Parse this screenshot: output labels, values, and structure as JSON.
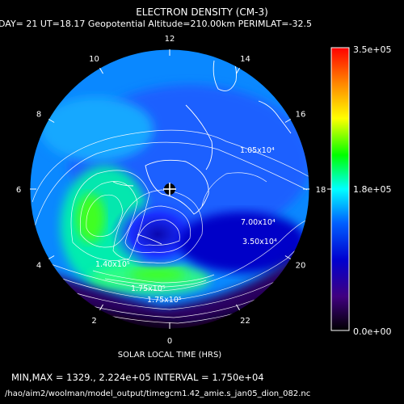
{
  "title": "ELECTRON DENSITY (CM-3)",
  "subtitle": "DAY= 21 UT=18.17 Geopotential Altitude=210.00km PERIMLAT=-32.5",
  "map": {
    "hour_labels": [
      "12",
      "14",
      "16",
      "18",
      "20",
      "22",
      "0",
      "2",
      "4",
      "6",
      "8",
      "10"
    ],
    "contour_labels": [
      "1.05x10⁴",
      "7.00x10⁴",
      "3.50x10⁴",
      "1.40x10⁵",
      "1.75x10⁵",
      "1.75x10⁵"
    ],
    "xlabel": "SOLAR LOCAL TIME (HRS)"
  },
  "colorbar": {
    "max_label": "3.5e+05",
    "mid_label": "1.8e+05",
    "min_label": "0.0e+00",
    "colors": [
      "#ff0000",
      "#ff8000",
      "#ffff00",
      "#00ff00",
      "#00ffff",
      "#0060ff",
      "#0000d0",
      "#400080",
      "#000000"
    ]
  },
  "footer": {
    "minmax": "MIN,MAX =       1329., 2.224e+05 INTERVAL =  1.750e+04",
    "path": "/hao/aim2/woolman/model_output/timegcm1.42_amie.s_jan05_dion_082.nc"
  }
}
